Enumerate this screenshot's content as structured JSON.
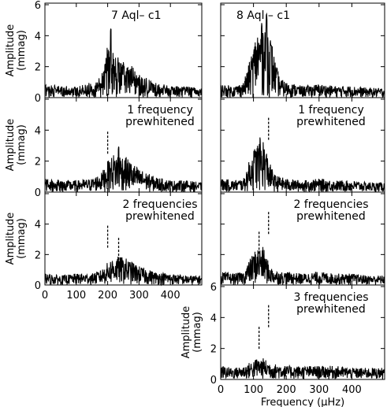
{
  "chart_data": [
    {
      "type": "line",
      "panel_title": "7 Aql– c1",
      "xlabel": "",
      "ylabel": "Amplitude (mmag)",
      "xlim": [
        0,
        500
      ],
      "ylim": [
        0,
        6
      ],
      "x_ticks": [],
      "y_ticks": [
        "0",
        "2",
        "4",
        "6"
      ],
      "envelope": {
        "x": [
          0,
          50,
          100,
          150,
          180,
          200,
          220,
          240,
          260,
          280,
          300,
          350,
          400,
          450,
          500
        ],
        "y": [
          0.7,
          0.6,
          0.6,
          0.8,
          1.2,
          2.8,
          2.4,
          2.0,
          1.8,
          1.6,
          1.2,
          0.8,
          0.6,
          0.6,
          0.5
        ]
      },
      "peaks": [
        {
          "x": 210,
          "y": 4.5
        }
      ],
      "markers": []
    },
    {
      "type": "line",
      "panel_title": "1 frequency prewhitened",
      "xlabel": "",
      "ylabel": "Amplitude (mmag)",
      "xlim": [
        0,
        500
      ],
      "ylim": [
        0,
        6
      ],
      "x_ticks": [],
      "y_ticks": [
        "0",
        "2",
        "4"
      ],
      "envelope": {
        "x": [
          0,
          50,
          100,
          150,
          180,
          200,
          220,
          240,
          260,
          280,
          300,
          350,
          400,
          450,
          500
        ],
        "y": [
          0.7,
          0.6,
          0.6,
          0.7,
          1.0,
          1.6,
          2.0,
          2.0,
          1.8,
          1.5,
          1.2,
          0.8,
          0.6,
          0.6,
          0.5
        ]
      },
      "peaks": [
        {
          "x": 235,
          "y": 3.0
        }
      ],
      "markers": [
        {
          "x": 200,
          "y": 3.9
        }
      ]
    },
    {
      "type": "line",
      "panel_title": "2 frequencies prewhitened",
      "xlabel": "",
      "ylabel": "Amplitude (mmag)",
      "xlim": [
        0,
        500
      ],
      "ylim": [
        0,
        6
      ],
      "x_ticks": [
        "0",
        "100",
        "200",
        "300",
        "400"
      ],
      "y_ticks": [
        "0",
        "2",
        "4"
      ],
      "envelope": {
        "x": [
          0,
          50,
          100,
          150,
          180,
          200,
          220,
          240,
          260,
          280,
          300,
          350,
          400,
          450,
          500
        ],
        "y": [
          0.6,
          0.5,
          0.6,
          0.6,
          0.8,
          1.2,
          1.5,
          1.5,
          1.4,
          1.2,
          1.0,
          0.7,
          0.6,
          0.5,
          0.5
        ]
      },
      "peaks": [],
      "markers": [
        {
          "x": 200,
          "y": 3.9
        },
        {
          "x": 235,
          "y": 3.1
        }
      ]
    },
    {
      "type": "line",
      "panel_title": "8 Aql – c1",
      "xlabel": "",
      "ylabel": "",
      "xlim": [
        0,
        500
      ],
      "ylim": [
        0,
        6
      ],
      "x_ticks": [],
      "y_ticks": [],
      "envelope": {
        "x": [
          0,
          40,
          70,
          90,
          110,
          130,
          150,
          165,
          180,
          200,
          250,
          300,
          350,
          400,
          450,
          500
        ],
        "y": [
          0.7,
          0.6,
          0.8,
          2.0,
          3.5,
          4.0,
          3.5,
          2.0,
          1.0,
          0.8,
          0.6,
          0.7,
          0.6,
          0.6,
          0.5,
          0.5
        ]
      },
      "peaks": [
        {
          "x": 140,
          "y": 5.5
        },
        {
          "x": 125,
          "y": 4.8
        }
      ],
      "markers": []
    },
    {
      "type": "line",
      "panel_title": "1 frequency prewhitened",
      "xlabel": "",
      "ylabel": "",
      "xlim": [
        0,
        500
      ],
      "ylim": [
        0,
        6
      ],
      "x_ticks": [],
      "y_ticks": [],
      "envelope": {
        "x": [
          0,
          40,
          70,
          90,
          110,
          130,
          150,
          165,
          180,
          200,
          250,
          300,
          350,
          400,
          450,
          500
        ],
        "y": [
          0.7,
          0.6,
          0.7,
          1.8,
          2.6,
          2.8,
          1.5,
          0.9,
          0.8,
          0.7,
          0.6,
          0.7,
          0.6,
          0.6,
          0.5,
          0.5
        ]
      },
      "peaks": [
        {
          "x": 120,
          "y": 3.7
        }
      ],
      "markers": [
        {
          "x": 146,
          "y": 4.8
        }
      ]
    },
    {
      "type": "line",
      "panel_title": "2 frequencies prewhitened",
      "xlabel": "",
      "ylabel": "",
      "xlim": [
        0,
        500
      ],
      "ylim": [
        0,
        6
      ],
      "x_ticks": [],
      "y_ticks": [],
      "envelope": {
        "x": [
          0,
          40,
          70,
          90,
          110,
          130,
          150,
          165,
          180,
          200,
          250,
          300,
          350,
          400,
          450,
          500
        ],
        "y": [
          0.7,
          0.6,
          0.7,
          1.4,
          2.0,
          2.0,
          1.0,
          0.8,
          0.7,
          0.7,
          0.6,
          0.7,
          0.6,
          0.6,
          0.5,
          0.5
        ]
      },
      "peaks": [],
      "markers": [
        {
          "x": 117,
          "y": 3.5
        },
        {
          "x": 146,
          "y": 4.8
        }
      ]
    },
    {
      "type": "line",
      "panel_title": "3 frequencies prewhitened",
      "xlabel": "Frequency (μHz)",
      "ylabel": "Amplitude (mmag)",
      "xlim": [
        0,
        500
      ],
      "ylim": [
        0,
        6
      ],
      "x_ticks": [
        "0",
        "100",
        "200",
        "300",
        "400"
      ],
      "y_ticks": [
        "0",
        "2",
        "4",
        "6"
      ],
      "envelope": {
        "x": [
          0,
          40,
          70,
          90,
          110,
          130,
          150,
          165,
          180,
          200,
          250,
          300,
          350,
          400,
          450,
          500
        ],
        "y": [
          0.7,
          0.6,
          0.7,
          0.9,
          1.1,
          1.1,
          0.9,
          0.8,
          0.8,
          0.7,
          0.7,
          0.7,
          0.7,
          0.6,
          0.6,
          0.6
        ]
      },
      "peaks": [],
      "markers": [
        {
          "x": 117,
          "y": 3.4
        },
        {
          "x": 146,
          "y": 4.8
        }
      ]
    }
  ]
}
